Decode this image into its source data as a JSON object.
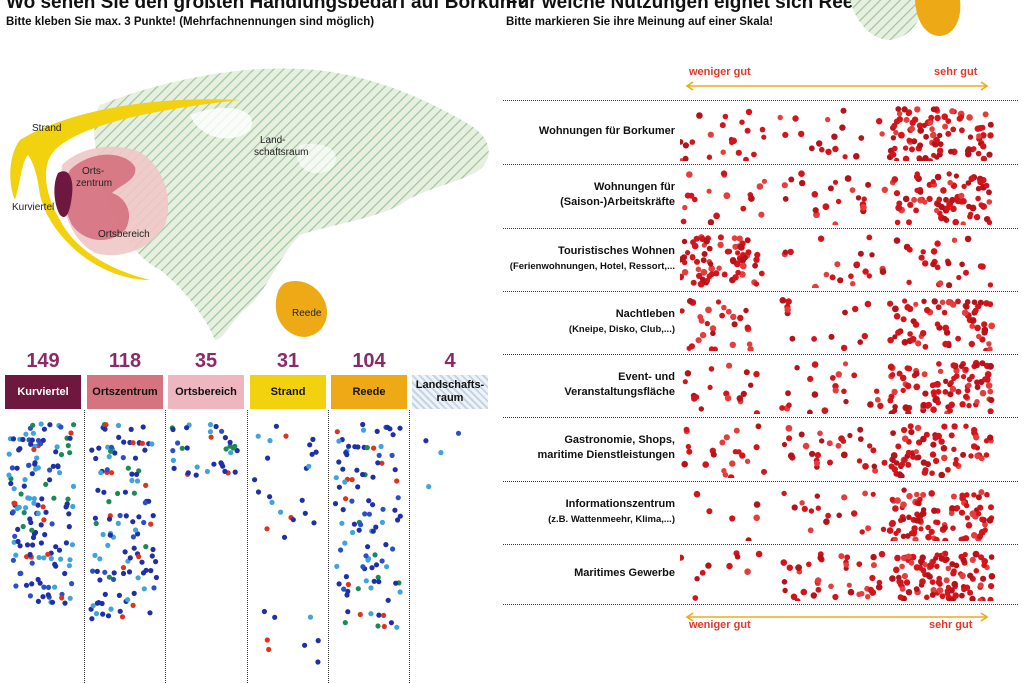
{
  "left": {
    "title": "Wo sehen Sie den größten Handlungsbedarf auf Borkum?",
    "subtitle": "Bitte kleben Sie max. 3 Punkte! (Mehrfachnennungen sind möglich)",
    "map_labels": {
      "strand": "Strand",
      "orts1": "Orts-",
      "orts2": "zentrum",
      "kurviertel": "Kurviertel",
      "ortsbereich": "Ortsbereich",
      "land1": "Land-",
      "land2": "schaftsraum",
      "reede": "Reede"
    },
    "categories": [
      {
        "count": "149",
        "label": "Kurviertel",
        "color": "#6e1840",
        "text_color": "#ffffff"
      },
      {
        "count": "118",
        "label": "Ortszentrum",
        "color": "#d5737f",
        "text_color": "#111111"
      },
      {
        "count": "35",
        "label": "Ortsbereich",
        "color": "#eeb6bf",
        "text_color": "#111111"
      },
      {
        "count": "31",
        "label": "Strand",
        "color": "#f2d20f",
        "text_color": "#111111"
      },
      {
        "count": "104",
        "label": "Reede",
        "color": "#eeaa16",
        "text_color": "#111111"
      },
      {
        "count": "4",
        "label": "Landschafts-raum",
        "label1": "Landschafts-",
        "label2": "raum",
        "color": "hatched",
        "text_color": "#111111"
      }
    ]
  },
  "right": {
    "title": "Für welche Nutzungen eignet sich Reede?",
    "subtitle": "Bitte markieren Sie ihre Meinung auf einer Skala!",
    "scale_low": "weniger gut",
    "scale_high": "sehr gut",
    "rows": [
      {
        "line1": "Wohnungen für Borkumer",
        "line2": ""
      },
      {
        "line1": "Wohnungen für",
        "line2": "(Saison-)Arbeitskräfte"
      },
      {
        "line1": "Touristisches Wohnen",
        "line2": "(Ferienwohnungen, Hotel, Ressort,...",
        "small": true
      },
      {
        "line1": "Nachtleben",
        "line2": "(Kneipe, Disko, Club,...)",
        "small": true
      },
      {
        "line1": "Event- und",
        "line2": "Veranstaltungsfläche"
      },
      {
        "line1": "Gastronomie, Shops,",
        "line2": "maritime Dienstleistungen"
      },
      {
        "line1": "Informationszentrum",
        "line2": "(z.B. Wattenmeehr, Klima,...)",
        "small": true
      },
      {
        "line1": "Maritimes Gewerbe",
        "line2": ""
      }
    ]
  },
  "chart_data": [
    {
      "type": "bar",
      "title": "Wo sehen Sie den größten Handlungsbedarf auf Borkum?",
      "categories": [
        "Kurviertel",
        "Ortszentrum",
        "Ortsbereich",
        "Strand",
        "Reede",
        "Landschafts-raum"
      ],
      "values": [
        149,
        118,
        35,
        31,
        104,
        4
      ],
      "colors": [
        "#6e1840",
        "#d5737f",
        "#eeb6bf",
        "#f2d20f",
        "#eeaa16",
        "#dde8dd"
      ]
    },
    {
      "type": "scatter",
      "title": "Für welche Nutzungen eignet sich Reede?",
      "xlabel_low": "weniger gut",
      "xlabel_high": "sehr gut",
      "categories": [
        "Wohnungen für Borkumer",
        "Wohnungen für (Saison-)Arbeitskräfte",
        "Touristisches Wohnen",
        "Nachtleben",
        "Event- und Veranstaltungsfläche",
        "Gastronomie, Shops, maritime Dienstleistungen",
        "Informationszentrum",
        "Maritimes Gewerbe"
      ],
      "dot_color": "#d4141b",
      "note": "dot density along scale from weniger gut (0) to sehr gut (1)"
    }
  ]
}
